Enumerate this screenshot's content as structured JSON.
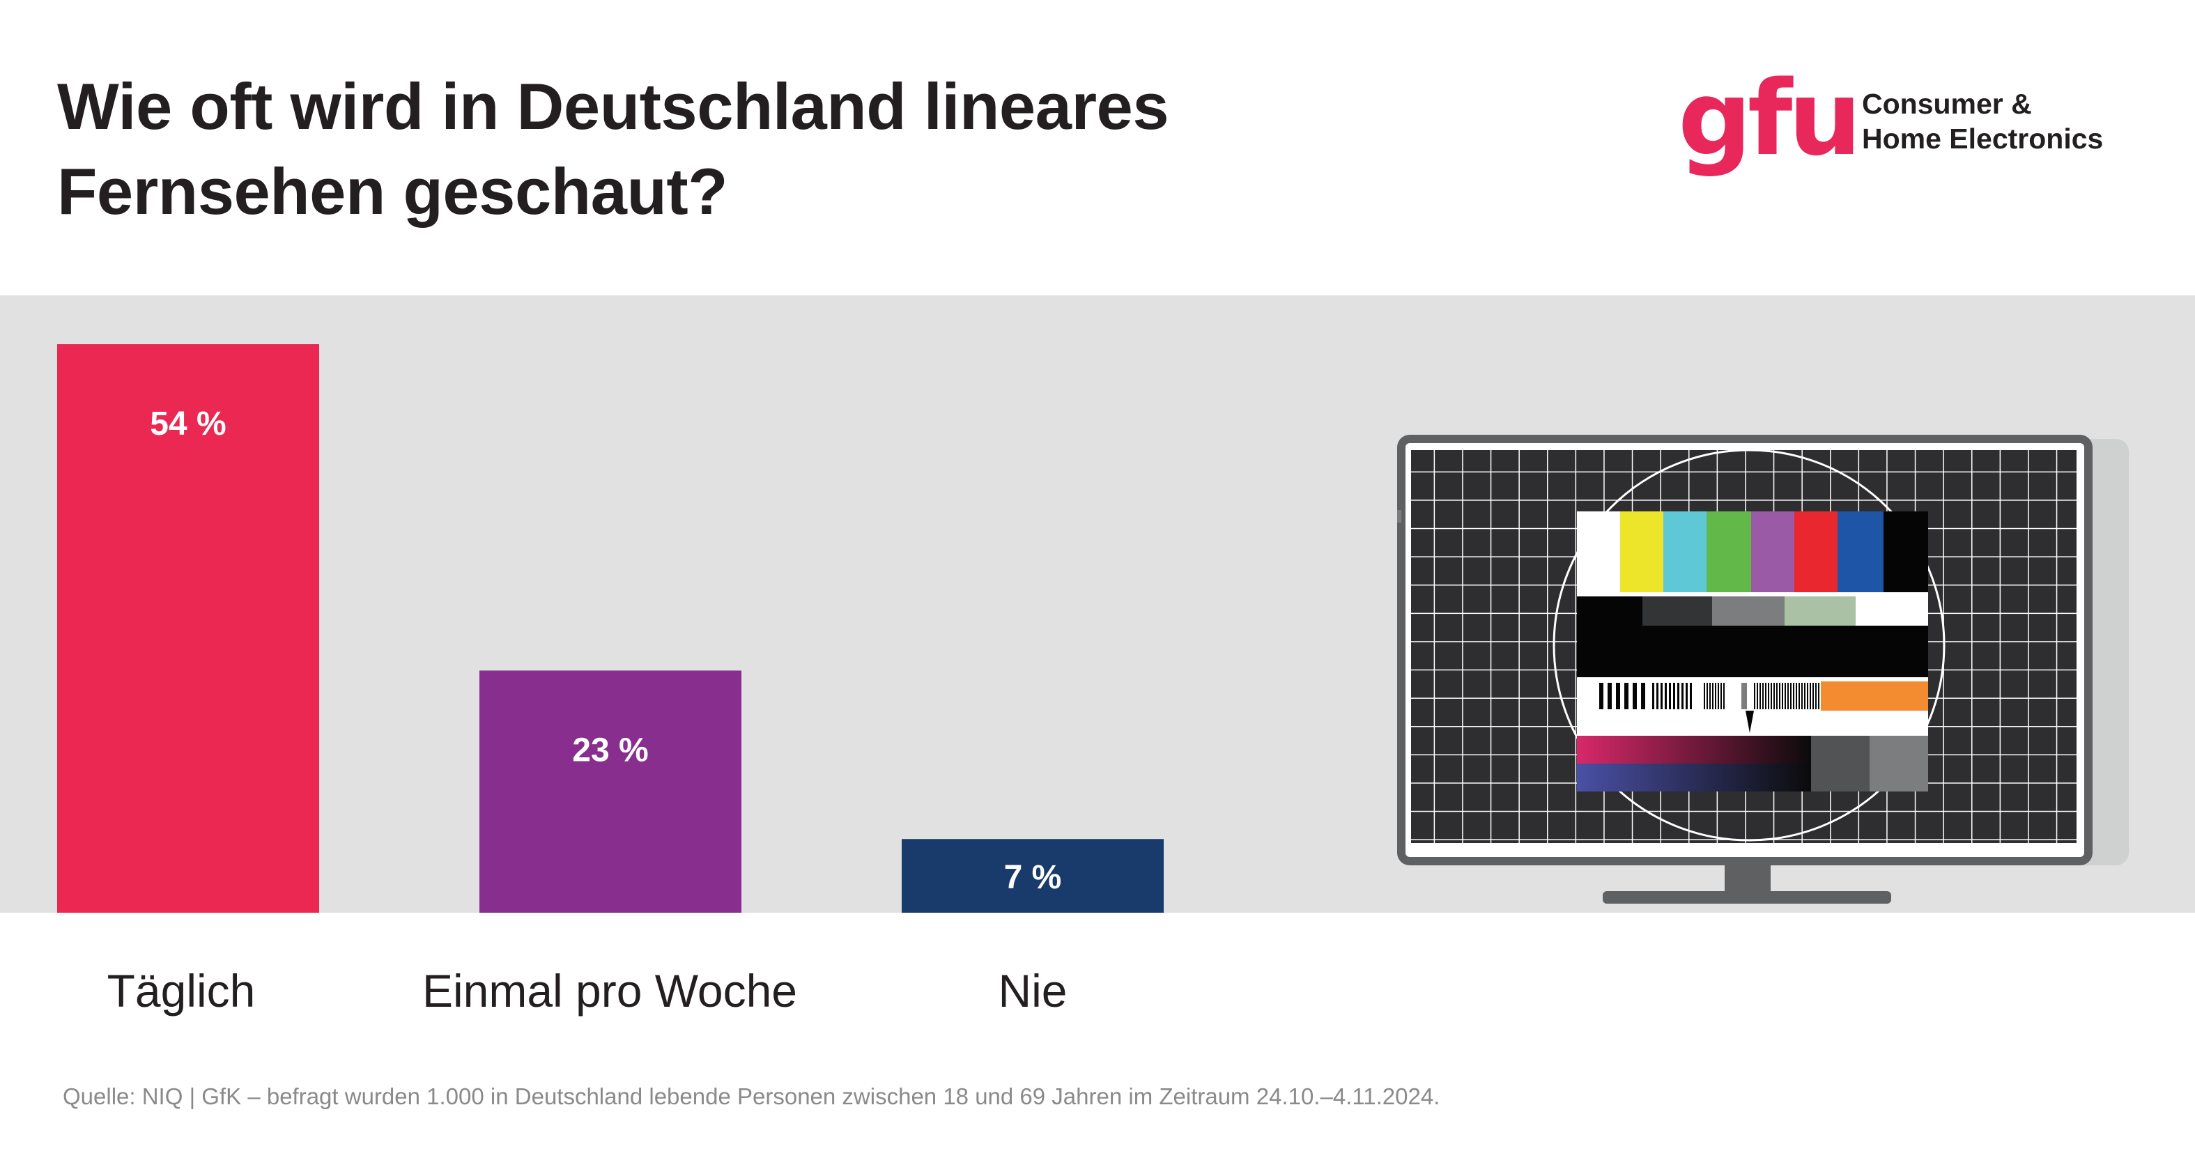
{
  "title_line1": "Wie oft wird in Deutschland lineares",
  "title_line2": "Fernsehen geschaut?",
  "logo": {
    "mark": "gfu",
    "line1": "Consumer &",
    "line2": "Home Electronics",
    "color": "#e8275a"
  },
  "source": "Quelle: NIQ | GfK – befragt wurden 1.000 in Deutschland lebende Personen zwischen 18 und 69 Jahren im Zeitraum 24.10.–4.11.2024.",
  "colors": {
    "band": "#e0e1e0"
  },
  "chart_data": {
    "type": "bar",
    "title": "Wie oft wird in Deutschland lineares Fernsehen geschaut?",
    "categories": [
      "Täglich",
      "Einmal pro Woche",
      "Nie"
    ],
    "values": [
      54,
      23,
      7
    ],
    "value_labels": [
      "54 %",
      "23 %",
      "7 %"
    ],
    "unit": "%",
    "ylim": [
      0,
      54
    ],
    "colors": [
      "#ea2852",
      "#872e8f",
      "#183b6c"
    ],
    "grid": false,
    "legend": "none"
  }
}
